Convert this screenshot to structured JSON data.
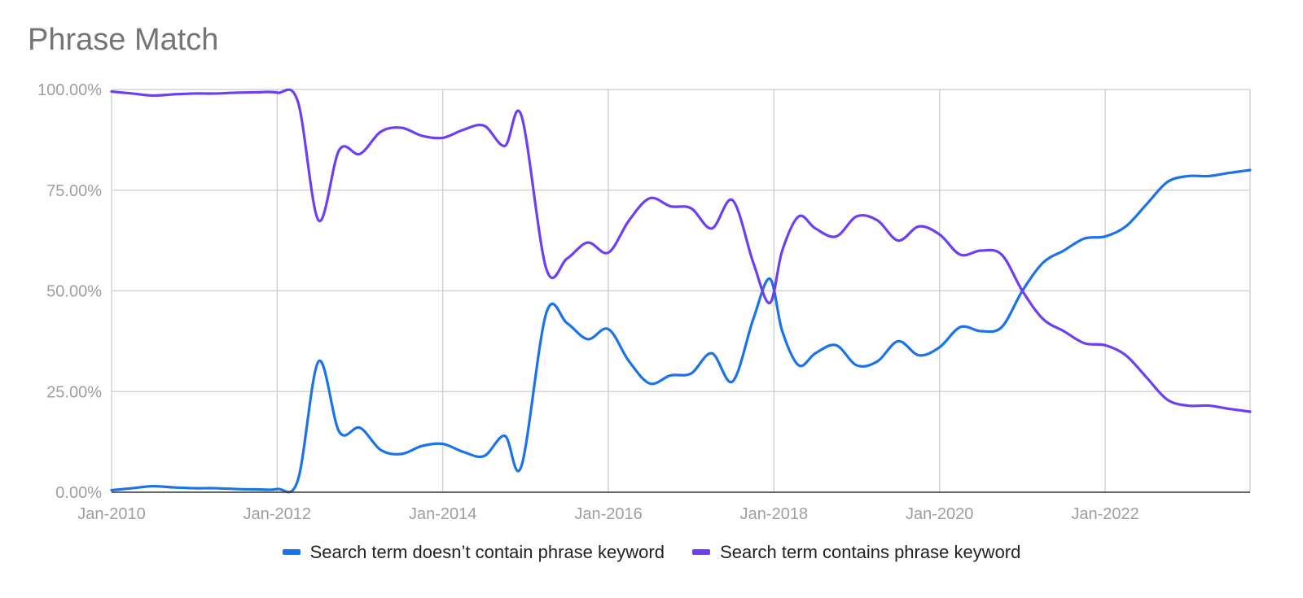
{
  "chart_data": {
    "type": "line",
    "title": "Phrase Match",
    "xlabel": "",
    "ylabel": "",
    "x_tick_labels": [
      "Jan-2010",
      "Jan-2012",
      "Jan-2014",
      "Jan-2016",
      "Jan-2018",
      "Jan-2020",
      "Jan-2022"
    ],
    "y_tick_labels": [
      "100.00%",
      "75.00%",
      "50.00%",
      "25.00%",
      "0.00%"
    ],
    "xlim": [
      2010.0,
      2023.75
    ],
    "ylim": [
      0,
      100
    ],
    "grid": true,
    "legend_position": "bottom",
    "series": [
      {
        "name": "Search term doesn’t contain phrase keyword",
        "color": "#1a73e8",
        "points": [
          [
            2010.0,
            0.5
          ],
          [
            2010.25,
            1.0
          ],
          [
            2010.5,
            1.5
          ],
          [
            2010.75,
            1.2
          ],
          [
            2011.0,
            1.0
          ],
          [
            2011.25,
            1.0
          ],
          [
            2011.5,
            0.8
          ],
          [
            2011.75,
            0.7
          ],
          [
            2012.0,
            0.8
          ],
          [
            2012.25,
            3.0
          ],
          [
            2012.5,
            32.5
          ],
          [
            2012.75,
            15.0
          ],
          [
            2013.0,
            16.0
          ],
          [
            2013.25,
            10.5
          ],
          [
            2013.5,
            9.5
          ],
          [
            2013.75,
            11.5
          ],
          [
            2014.0,
            12.0
          ],
          [
            2014.25,
            10.0
          ],
          [
            2014.5,
            9.0
          ],
          [
            2014.75,
            14.0
          ],
          [
            2014.95,
            6.5
          ],
          [
            2015.25,
            44.5
          ],
          [
            2015.5,
            42.0
          ],
          [
            2015.75,
            38.0
          ],
          [
            2016.0,
            40.5
          ],
          [
            2016.25,
            32.5
          ],
          [
            2016.5,
            27.0
          ],
          [
            2016.75,
            29.0
          ],
          [
            2017.0,
            29.5
          ],
          [
            2017.25,
            34.5
          ],
          [
            2017.5,
            27.5
          ],
          [
            2017.75,
            43.0
          ],
          [
            2017.95,
            53.0
          ],
          [
            2018.1,
            40.0
          ],
          [
            2018.3,
            31.5
          ],
          [
            2018.5,
            34.5
          ],
          [
            2018.75,
            36.5
          ],
          [
            2019.0,
            31.5
          ],
          [
            2019.25,
            32.5
          ],
          [
            2019.5,
            37.5
          ],
          [
            2019.75,
            34.0
          ],
          [
            2020.0,
            36.0
          ],
          [
            2020.25,
            41.0
          ],
          [
            2020.5,
            40.0
          ],
          [
            2020.75,
            41.0
          ],
          [
            2021.0,
            50.0
          ],
          [
            2021.25,
            57.0
          ],
          [
            2021.5,
            60.0
          ],
          [
            2021.75,
            63.0
          ],
          [
            2022.0,
            63.5
          ],
          [
            2022.25,
            66.0
          ],
          [
            2022.5,
            71.5
          ],
          [
            2022.75,
            77.0
          ],
          [
            2023.0,
            78.5
          ],
          [
            2023.25,
            78.5
          ],
          [
            2023.5,
            79.3
          ],
          [
            2023.75,
            80.0
          ]
        ]
      },
      {
        "name": "Search term contains phrase keyword",
        "color": "#6e3ef2",
        "points": [
          [
            2010.0,
            99.5
          ],
          [
            2010.25,
            99.0
          ],
          [
            2010.5,
            98.5
          ],
          [
            2010.75,
            98.8
          ],
          [
            2011.0,
            99.0
          ],
          [
            2011.25,
            99.0
          ],
          [
            2011.5,
            99.2
          ],
          [
            2011.75,
            99.3
          ],
          [
            2012.0,
            99.2
          ],
          [
            2012.25,
            97.0
          ],
          [
            2012.5,
            67.5
          ],
          [
            2012.75,
            85.0
          ],
          [
            2013.0,
            84.0
          ],
          [
            2013.25,
            89.5
          ],
          [
            2013.5,
            90.5
          ],
          [
            2013.75,
            88.5
          ],
          [
            2014.0,
            88.0
          ],
          [
            2014.25,
            90.0
          ],
          [
            2014.5,
            91.0
          ],
          [
            2014.75,
            86.0
          ],
          [
            2014.95,
            93.5
          ],
          [
            2015.25,
            55.5
          ],
          [
            2015.5,
            58.0
          ],
          [
            2015.75,
            62.0
          ],
          [
            2016.0,
            59.5
          ],
          [
            2016.25,
            67.5
          ],
          [
            2016.5,
            73.0
          ],
          [
            2016.75,
            71.0
          ],
          [
            2017.0,
            70.5
          ],
          [
            2017.25,
            65.5
          ],
          [
            2017.5,
            72.5
          ],
          [
            2017.75,
            57.0
          ],
          [
            2017.95,
            47.0
          ],
          [
            2018.1,
            60.0
          ],
          [
            2018.3,
            68.5
          ],
          [
            2018.5,
            65.5
          ],
          [
            2018.75,
            63.5
          ],
          [
            2019.0,
            68.5
          ],
          [
            2019.25,
            67.5
          ],
          [
            2019.5,
            62.5
          ],
          [
            2019.75,
            66.0
          ],
          [
            2020.0,
            64.0
          ],
          [
            2020.25,
            59.0
          ],
          [
            2020.5,
            60.0
          ],
          [
            2020.75,
            59.0
          ],
          [
            2021.0,
            50.0
          ],
          [
            2021.25,
            43.0
          ],
          [
            2021.5,
            40.0
          ],
          [
            2021.75,
            37.0
          ],
          [
            2022.0,
            36.5
          ],
          [
            2022.25,
            34.0
          ],
          [
            2022.5,
            28.5
          ],
          [
            2022.75,
            23.0
          ],
          [
            2023.0,
            21.5
          ],
          [
            2023.25,
            21.5
          ],
          [
            2023.5,
            20.7
          ],
          [
            2023.75,
            20.0
          ]
        ]
      }
    ]
  }
}
